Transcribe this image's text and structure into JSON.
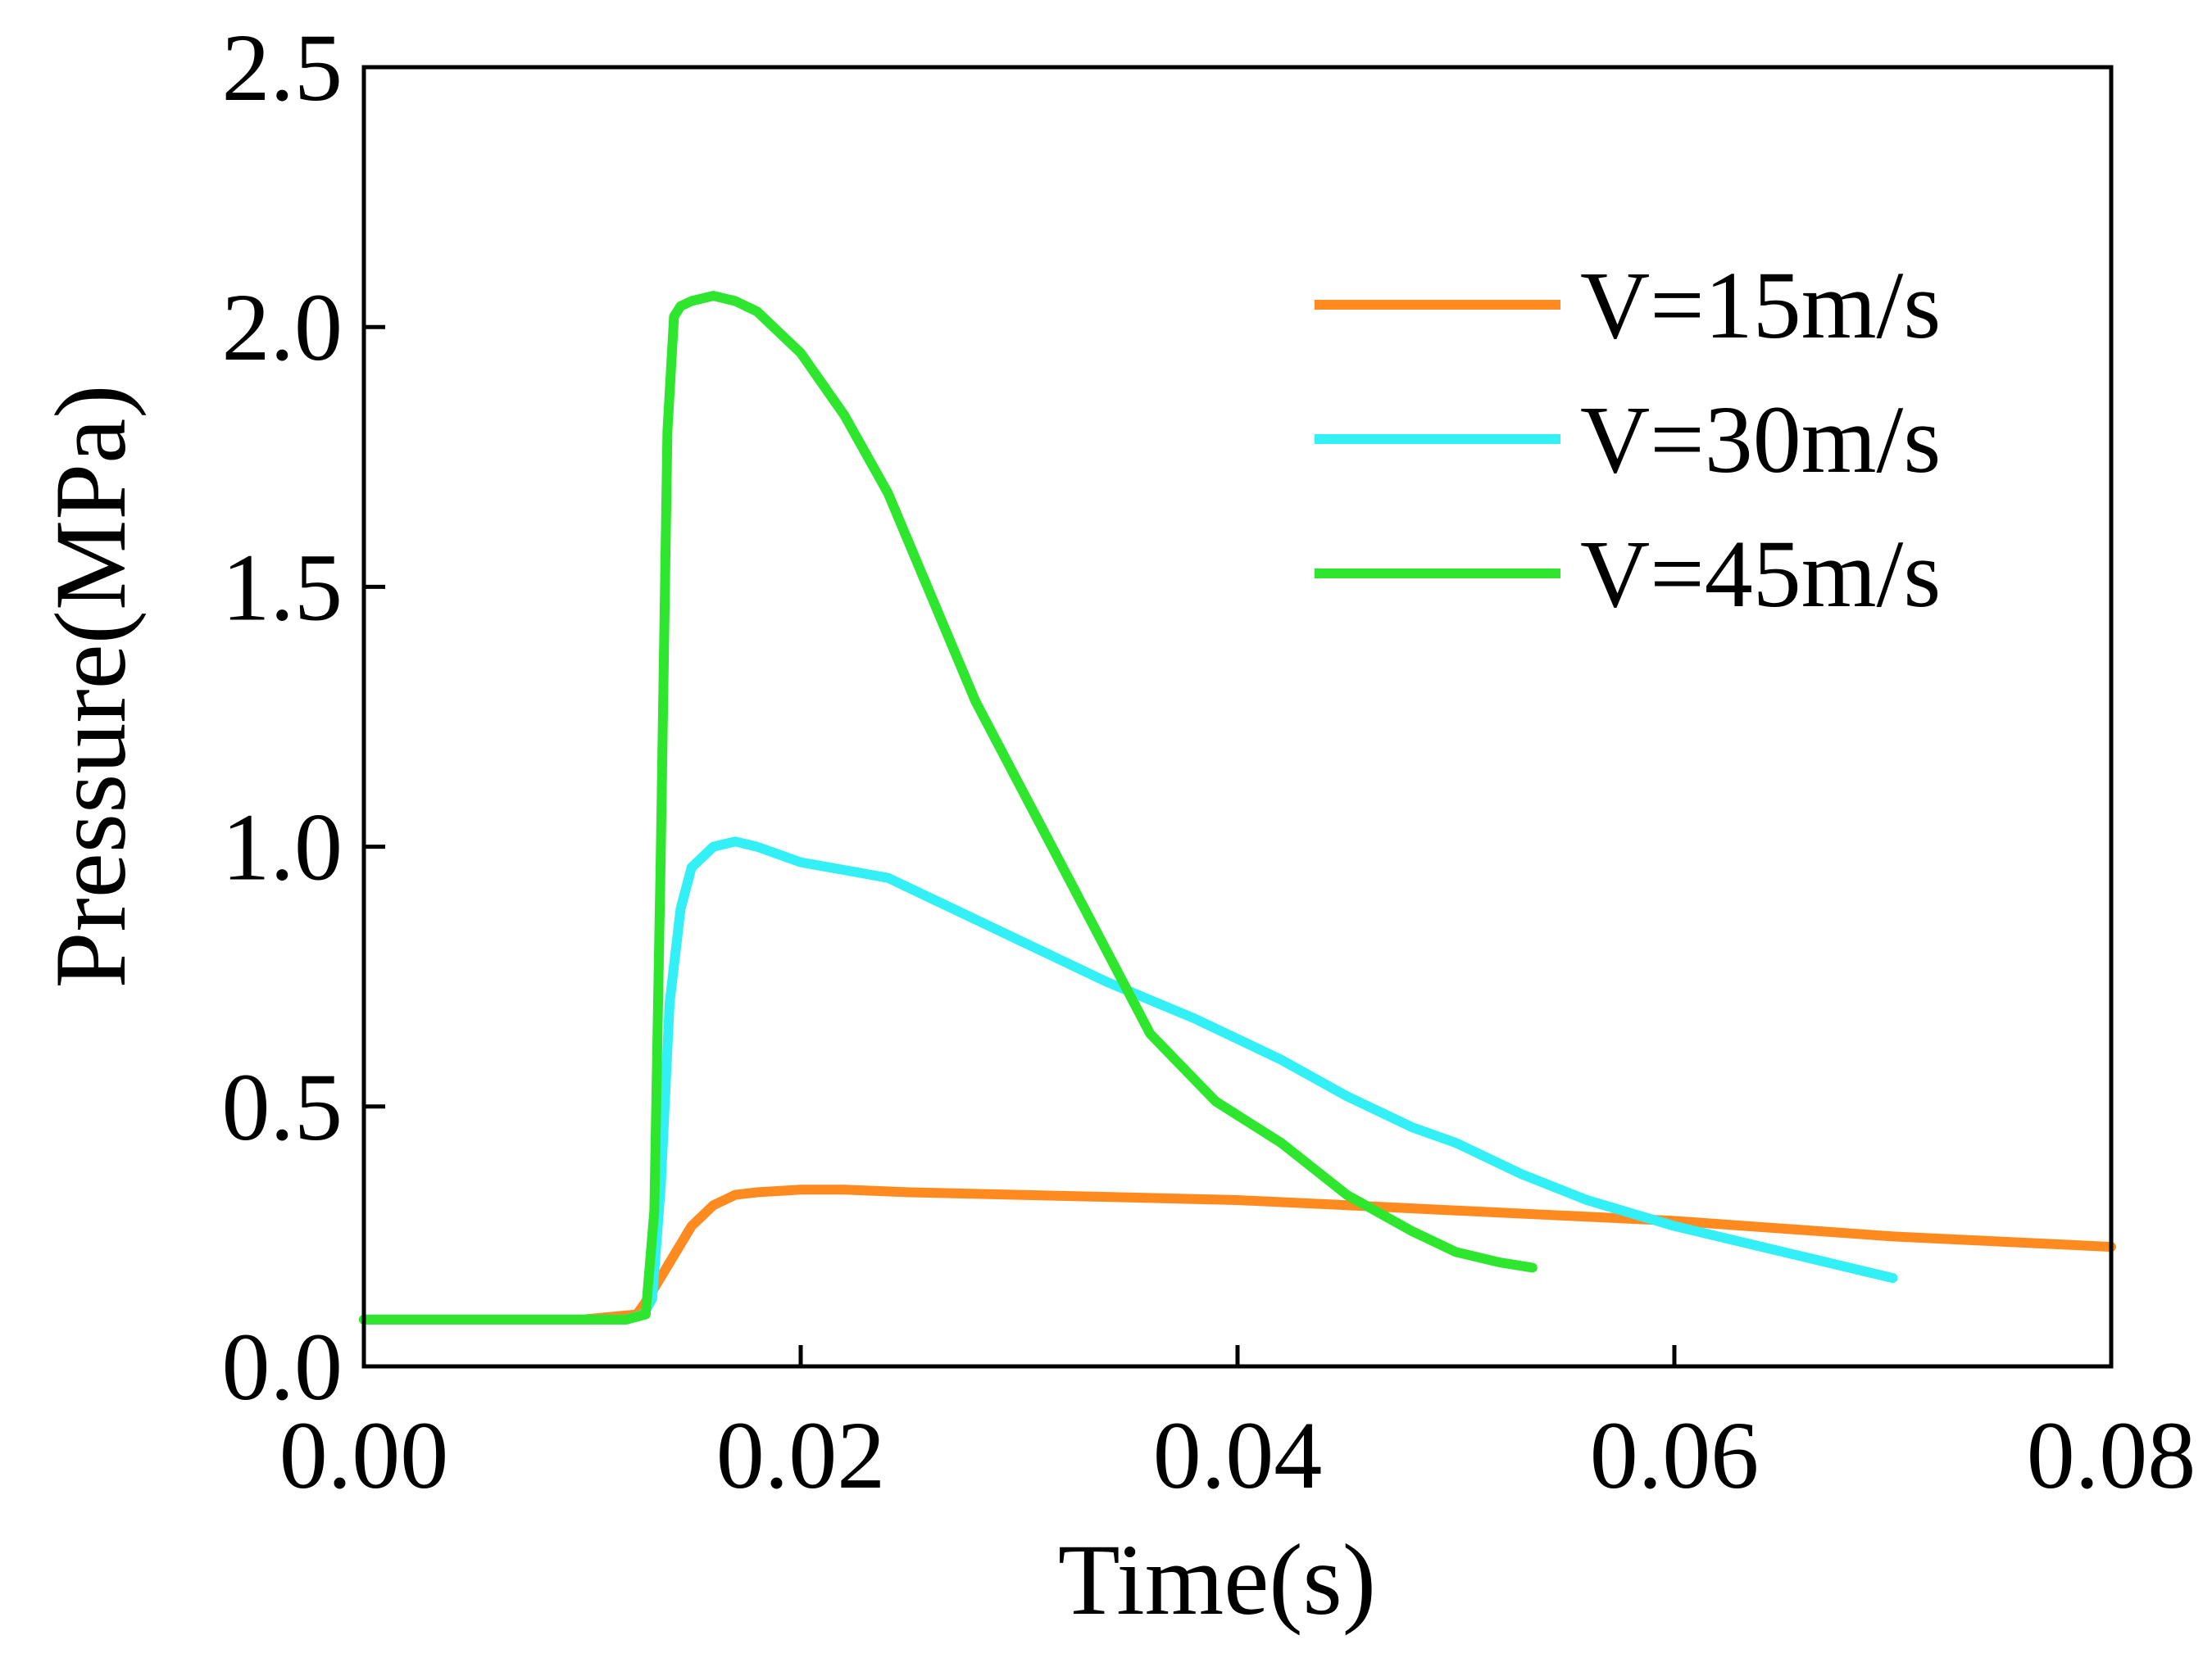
{
  "chart_data": {
    "type": "line",
    "title": "",
    "xlabel": "Time(s)",
    "ylabel": "Pressure(MPa)",
    "xlim": [
      0,
      0.08
    ],
    "ylim": [
      0,
      2.5
    ],
    "xticks": [
      0,
      0.02,
      0.04,
      0.06,
      0.08
    ],
    "xtick_labels": [
      "0.00",
      "0.02",
      "0.04",
      "0.06",
      "0.08"
    ],
    "yticks": [
      0,
      0.5,
      1.0,
      1.5,
      2.0,
      2.5
    ],
    "ytick_labels": [
      "0.0",
      "0.5",
      "1.0",
      "1.5",
      "2.0",
      "2.5"
    ],
    "grid": false,
    "legend_position": "top-right",
    "series": [
      {
        "name": "V=15m/s",
        "color": "#ff8a1f",
        "x": [
          0,
          0.005,
          0.01,
          0.0125,
          0.013,
          0.014,
          0.015,
          0.016,
          0.017,
          0.018,
          0.02,
          0.022,
          0.025,
          0.03,
          0.035,
          0.04,
          0.045,
          0.05,
          0.055,
          0.06,
          0.065,
          0.07,
          0.075,
          0.08
        ],
        "y": [
          0.09,
          0.09,
          0.09,
          0.1,
          0.13,
          0.2,
          0.27,
          0.31,
          0.33,
          0.335,
          0.34,
          0.34,
          0.335,
          0.33,
          0.325,
          0.32,
          0.31,
          0.3,
          0.29,
          0.28,
          0.265,
          0.25,
          0.24,
          0.23
        ]
      },
      {
        "name": "V=30m/s",
        "color": "#33f0f6",
        "x": [
          0,
          0.005,
          0.01,
          0.012,
          0.0128,
          0.0132,
          0.0136,
          0.014,
          0.0145,
          0.015,
          0.016,
          0.017,
          0.018,
          0.02,
          0.024,
          0.027,
          0.03,
          0.034,
          0.038,
          0.04,
          0.042,
          0.045,
          0.048,
          0.05,
          0.053,
          0.056,
          0.06,
          0.065,
          0.07
        ],
        "y": [
          0.09,
          0.09,
          0.09,
          0.09,
          0.1,
          0.13,
          0.35,
          0.7,
          0.88,
          0.96,
          1.0,
          1.01,
          1.0,
          0.97,
          0.94,
          0.88,
          0.82,
          0.74,
          0.67,
          0.63,
          0.59,
          0.52,
          0.46,
          0.43,
          0.37,
          0.32,
          0.27,
          0.22,
          0.17
        ]
      },
      {
        "name": "V=45m/s",
        "color": "#2ee62e",
        "x": [
          0,
          0.005,
          0.01,
          0.012,
          0.0129,
          0.0133,
          0.0136,
          0.0139,
          0.0142,
          0.0145,
          0.015,
          0.016,
          0.017,
          0.018,
          0.02,
          0.022,
          0.024,
          0.026,
          0.028,
          0.03,
          0.033,
          0.036,
          0.039,
          0.042,
          0.045,
          0.048,
          0.05,
          0.052,
          0.0535
        ],
        "y": [
          0.09,
          0.09,
          0.09,
          0.09,
          0.1,
          0.3,
          1.0,
          1.8,
          2.02,
          2.04,
          2.05,
          2.06,
          2.05,
          2.03,
          1.95,
          1.83,
          1.68,
          1.48,
          1.28,
          1.12,
          0.88,
          0.64,
          0.51,
          0.43,
          0.33,
          0.26,
          0.22,
          0.2,
          0.19
        ]
      }
    ]
  }
}
